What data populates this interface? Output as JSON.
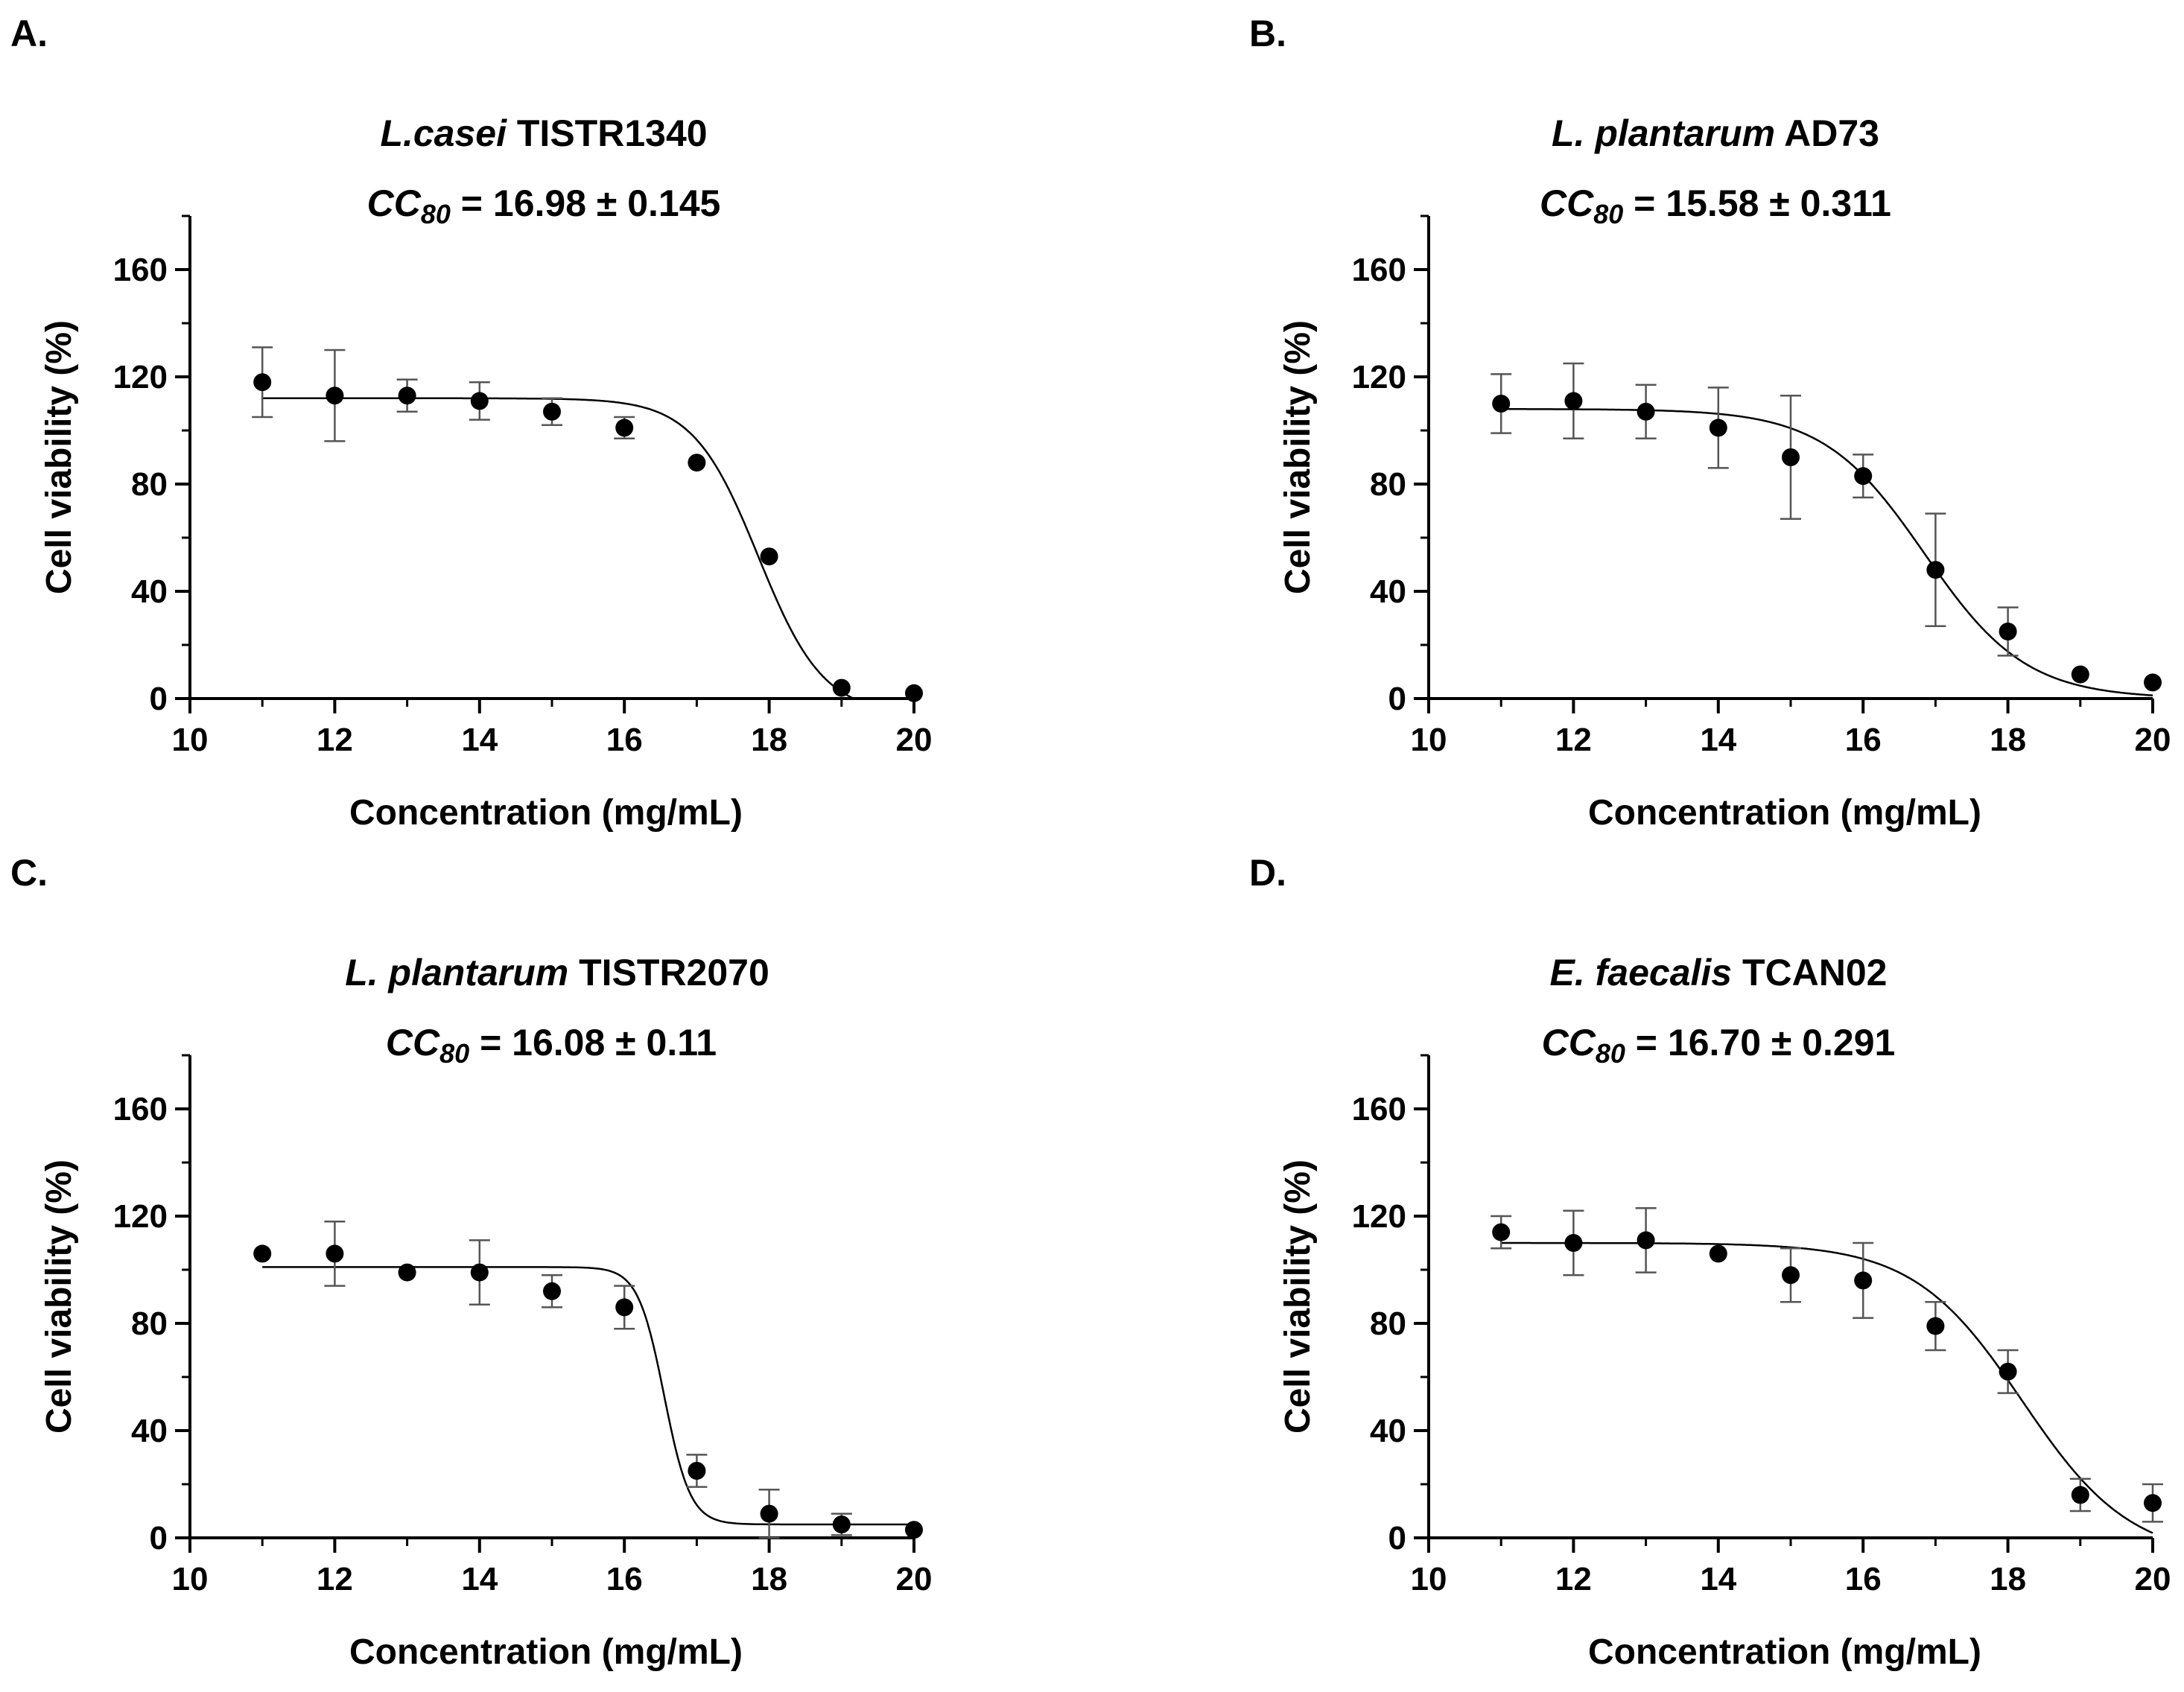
{
  "chart_data": [
    {
      "type": "scatter",
      "panel": "A.",
      "title": {
        "italic": "L.casei",
        "normal": " TISTR1340"
      },
      "subtitle": {
        "cc": "CC",
        "sub": "80",
        "rest": " = 16.98 ± 0.145"
      },
      "xlabel": "Concentration (mg/mL)",
      "ylabel": "Cell viability (%)",
      "xlim": [
        10,
        20
      ],
      "ylim": [
        0,
        180
      ],
      "xticks": [
        10,
        12,
        14,
        16,
        18,
        20
      ],
      "yticks": [
        0,
        40,
        80,
        120,
        160
      ],
      "x": [
        11,
        12,
        13,
        14,
        15,
        16,
        17,
        18,
        19,
        20
      ],
      "y": [
        118,
        113,
        113,
        111,
        107,
        101,
        88,
        53,
        4,
        2
      ],
      "err": [
        13,
        17,
        6,
        7,
        5,
        4,
        2,
        2,
        1,
        1
      ],
      "fit": {
        "top": 112,
        "bottom": -6,
        "mid": 17.85,
        "slope": 0.45
      }
    },
    {
      "type": "scatter",
      "panel": "B.",
      "title": {
        "italic": "L. plantarum",
        "normal": " AD73"
      },
      "subtitle": {
        "cc": "CC",
        "sub": "80",
        "rest": " = 15.58 ± 0.311"
      },
      "xlabel": "Concentration (mg/mL)",
      "ylabel": "Cell viability (%)",
      "xlim": [
        10,
        20
      ],
      "ylim": [
        0,
        180
      ],
      "xticks": [
        10,
        12,
        14,
        16,
        18,
        20
      ],
      "yticks": [
        0,
        40,
        80,
        120,
        160
      ],
      "x": [
        11,
        12,
        13,
        14,
        15,
        16,
        17,
        18,
        19,
        20
      ],
      "y": [
        110,
        111,
        107,
        101,
        90,
        83,
        48,
        25,
        9,
        6
      ],
      "err": [
        11,
        14,
        10,
        15,
        23,
        8,
        21,
        9,
        1,
        1
      ],
      "fit": {
        "top": 108,
        "bottom": 0,
        "mid": 16.85,
        "slope": 0.7
      }
    },
    {
      "type": "scatter",
      "panel": "C.",
      "title": {
        "italic": "L. plantarum",
        "normal": " TISTR2070"
      },
      "subtitle": {
        "cc": "CC",
        "sub": "80",
        "rest": " = 16.08 ± 0.11"
      },
      "xlabel": "Concentration (mg/mL)",
      "ylabel": "Cell viability (%)",
      "xlim": [
        10,
        20
      ],
      "ylim": [
        0,
        180
      ],
      "xticks": [
        10,
        12,
        14,
        16,
        18,
        20
      ],
      "yticks": [
        0,
        40,
        80,
        120,
        160
      ],
      "x": [
        11,
        12,
        13,
        14,
        15,
        16,
        17,
        18,
        19,
        20
      ],
      "y": [
        106,
        106,
        99,
        99,
        92,
        86,
        25,
        9,
        5,
        3
      ],
      "err": [
        1,
        12,
        1,
        12,
        6,
        8,
        6,
        9,
        4,
        1
      ],
      "fit": {
        "top": 101,
        "bottom": 5,
        "mid": 16.55,
        "slope": 0.18
      }
    },
    {
      "type": "scatter",
      "panel": "D.",
      "title": {
        "italic": "E. faecalis",
        "normal": " TCAN02"
      },
      "subtitle": {
        "cc": "CC",
        "sub": "80",
        "rest": " = 16.70 ± 0.291"
      },
      "xlabel": "Concentration (mg/mL)",
      "ylabel": "Cell viability (%)",
      "xlim": [
        10,
        20
      ],
      "ylim": [
        0,
        180
      ],
      "xticks": [
        10,
        12,
        14,
        16,
        18,
        20
      ],
      "yticks": [
        0,
        40,
        80,
        120,
        160
      ],
      "x": [
        11,
        12,
        13,
        14,
        15,
        16,
        17,
        18,
        19,
        20
      ],
      "y": [
        114,
        110,
        111,
        106,
        98,
        96,
        79,
        62,
        16,
        13
      ],
      "err": [
        6,
        12,
        12,
        1,
        10,
        14,
        9,
        8,
        6,
        7
      ],
      "fit": {
        "top": 110,
        "bottom": -8,
        "mid": 18.2,
        "slope": 0.75
      }
    }
  ]
}
